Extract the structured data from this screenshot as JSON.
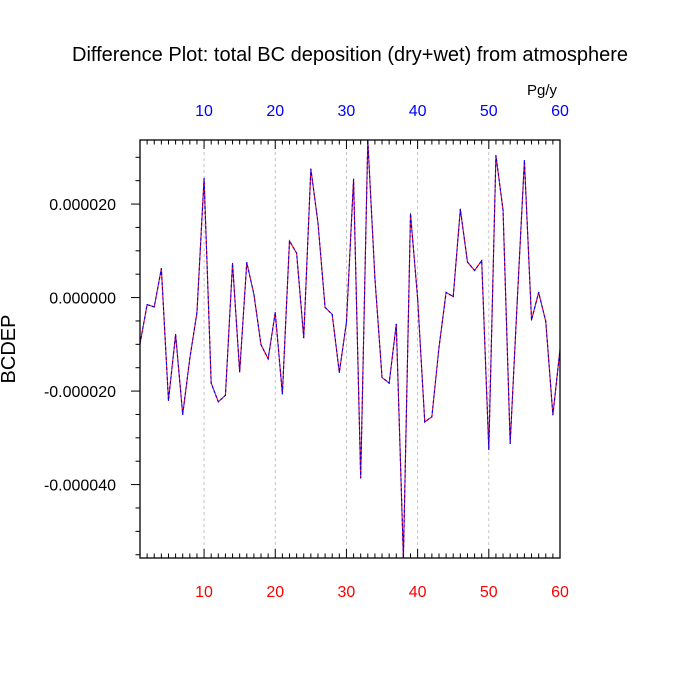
{
  "chart_data": {
    "type": "line",
    "title": "Difference Plot: total BC deposition (dry+wet) from atmosphere",
    "units": "Pg/y",
    "ylabel": "BCDEP",
    "xlabel": "",
    "xlim": [
      1,
      60
    ],
    "ylim": [
      -5.57e-05,
      3.37e-05
    ],
    "x_ticks": [
      10,
      20,
      30,
      40,
      50,
      60
    ],
    "x_tick_labels": [
      "10",
      "20",
      "30",
      "40",
      "50",
      "60"
    ],
    "y_ticks": [
      2e-05,
      0.0,
      -2e-05,
      -4e-05
    ],
    "y_tick_labels": [
      "0.000020",
      "0.000000",
      "-0.000020",
      "-0.000040"
    ],
    "grid": "vertical dashed at major x ticks",
    "bottom_tick_color": "#ff0000",
    "top_tick_color": "#0000ff",
    "line_color_1": "#ff0000",
    "line_color_2": "#0000ff",
    "x": [
      1,
      2,
      3,
      4,
      5,
      6,
      7,
      8,
      9,
      10,
      11,
      12,
      13,
      14,
      15,
      16,
      17,
      18,
      19,
      20,
      21,
      22,
      23,
      24,
      25,
      26,
      27,
      28,
      29,
      30,
      31,
      32,
      33,
      34,
      35,
      36,
      37,
      38,
      39,
      40,
      41,
      42,
      43,
      44,
      45,
      46,
      47,
      48,
      49,
      50,
      51,
      52,
      53,
      54,
      55,
      56,
      57,
      58,
      59,
      60
    ],
    "series": [
      {
        "values": [
          -9.9e-06,
          -1.5e-06,
          -2e-06,
          6.2e-06,
          -2.2e-05,
          -7.9e-06,
          -2.5e-05,
          -1.3e-05,
          -3.2e-06,
          2.55e-05,
          -1.83e-05,
          -2.23e-05,
          -2.09e-05,
          7.3e-06,
          -1.59e-05,
          7.5e-06,
          7e-07,
          -1.01e-05,
          -1.31e-05,
          -3.2e-06,
          -2.06e-05,
          1.21e-05,
          9.5e-06,
          -8.6e-06,
          2.75e-05,
          1.6e-05,
          -2.1e-06,
          -3.6e-06,
          -1.6e-05,
          -5.3e-06,
          2.53e-05,
          -3.86e-05,
          3.37e-05,
          4.1e-06,
          -1.71e-05,
          -1.83e-05,
          -5.7e-06,
          -5.57e-05,
          1.79e-05,
          -2e-07,
          -2.66e-05,
          -2.55e-05,
          -1.07e-05,
          1.1e-06,
          2e-07,
          1.89e-05,
          7.6e-06,
          5.8e-06,
          7.9e-06,
          -3.25e-05,
          3.04e-05,
          1.87e-05,
          -3.12e-05,
          -5e-07,
          2.93e-05,
          -4.8e-06,
          1.1e-06,
          -5.1e-06,
          -2.51e-05,
          -1.11e-05
        ]
      }
    ]
  }
}
